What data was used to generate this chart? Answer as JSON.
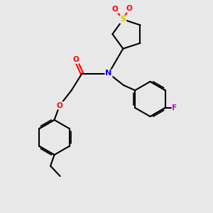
{
  "bg_color": "#e8e8e8",
  "atom_colors": {
    "S": "#cccc00",
    "O": "#ff0000",
    "N": "#0000ff",
    "F": "#cc00cc",
    "C": "#000000"
  },
  "bond_color": "#000000",
  "bond_width": 1.5,
  "figsize": [
    3.0,
    3.0
  ],
  "dpi": 100,
  "xlim": [
    0,
    10
  ],
  "ylim": [
    0,
    10
  ]
}
